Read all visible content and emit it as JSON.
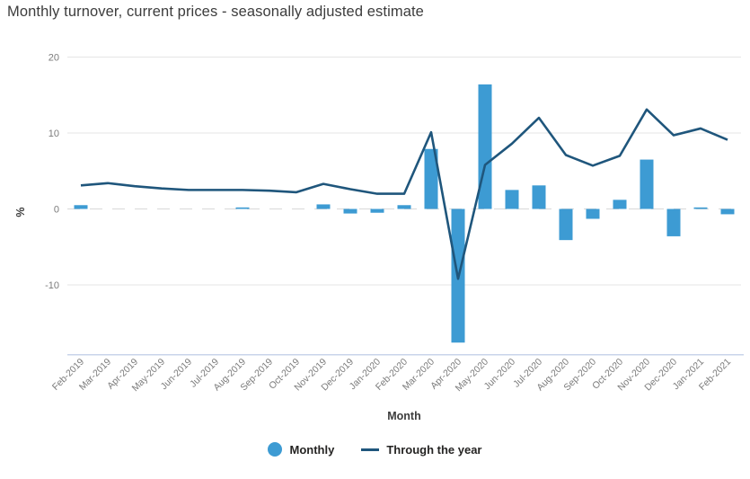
{
  "chart_data": {
    "type": "combo",
    "title": "Monthly turnover, current prices - seasonally adjusted estimate",
    "xlabel": "Month",
    "ylabel": "%",
    "categories": [
      "Feb-2019",
      "Mar-2019",
      "Apr-2019",
      "May-2019",
      "Jun-2019",
      "Jul-2019",
      "Aug-2019",
      "Sep-2019",
      "Oct-2019",
      "Nov-2019",
      "Dec-2019",
      "Jan-2020",
      "Feb-2020",
      "Mar-2020",
      "Apr-2020",
      "May-2020",
      "Jun-2020",
      "Jul-2020",
      "Aug-2020",
      "Sep-2020",
      "Oct-2020",
      "Nov-2020",
      "Dec-2020",
      "Jan-2021",
      "Feb-2021"
    ],
    "series": [
      {
        "name": "Monthly",
        "type": "bar",
        "color": "#3d9bd3",
        "values": [
          0.5,
          0,
          0,
          0,
          0,
          0,
          0.2,
          0,
          0,
          0.6,
          -0.6,
          -0.5,
          0.5,
          7.9,
          -17.6,
          16.4,
          2.5,
          3.1,
          -4.1,
          -1.3,
          1.2,
          6.5,
          -3.6,
          0.2,
          -0.7
        ]
      },
      {
        "name": "Through the year",
        "type": "line",
        "color": "#1f567c",
        "values": [
          3.1,
          3.4,
          3.0,
          2.7,
          2.5,
          2.5,
          2.5,
          2.4,
          2.2,
          3.3,
          2.6,
          2.0,
          2.0,
          10.1,
          -9.2,
          5.8,
          8.6,
          12.0,
          7.1,
          5.7,
          7.0,
          13.1,
          9.7,
          10.6,
          9.1
        ]
      }
    ],
    "yticks": [
      20,
      10,
      0,
      -10
    ],
    "ylim": [
      -19.2,
      20
    ],
    "grid": true,
    "legend_position": "bottom",
    "colors": {
      "gridline": "#e6e6e6",
      "zero_line": "#d9d9d9",
      "baseline": "#c9d4ea",
      "tick_label": "#7b7b7b",
      "axis_title": "#3c3c3c"
    }
  }
}
